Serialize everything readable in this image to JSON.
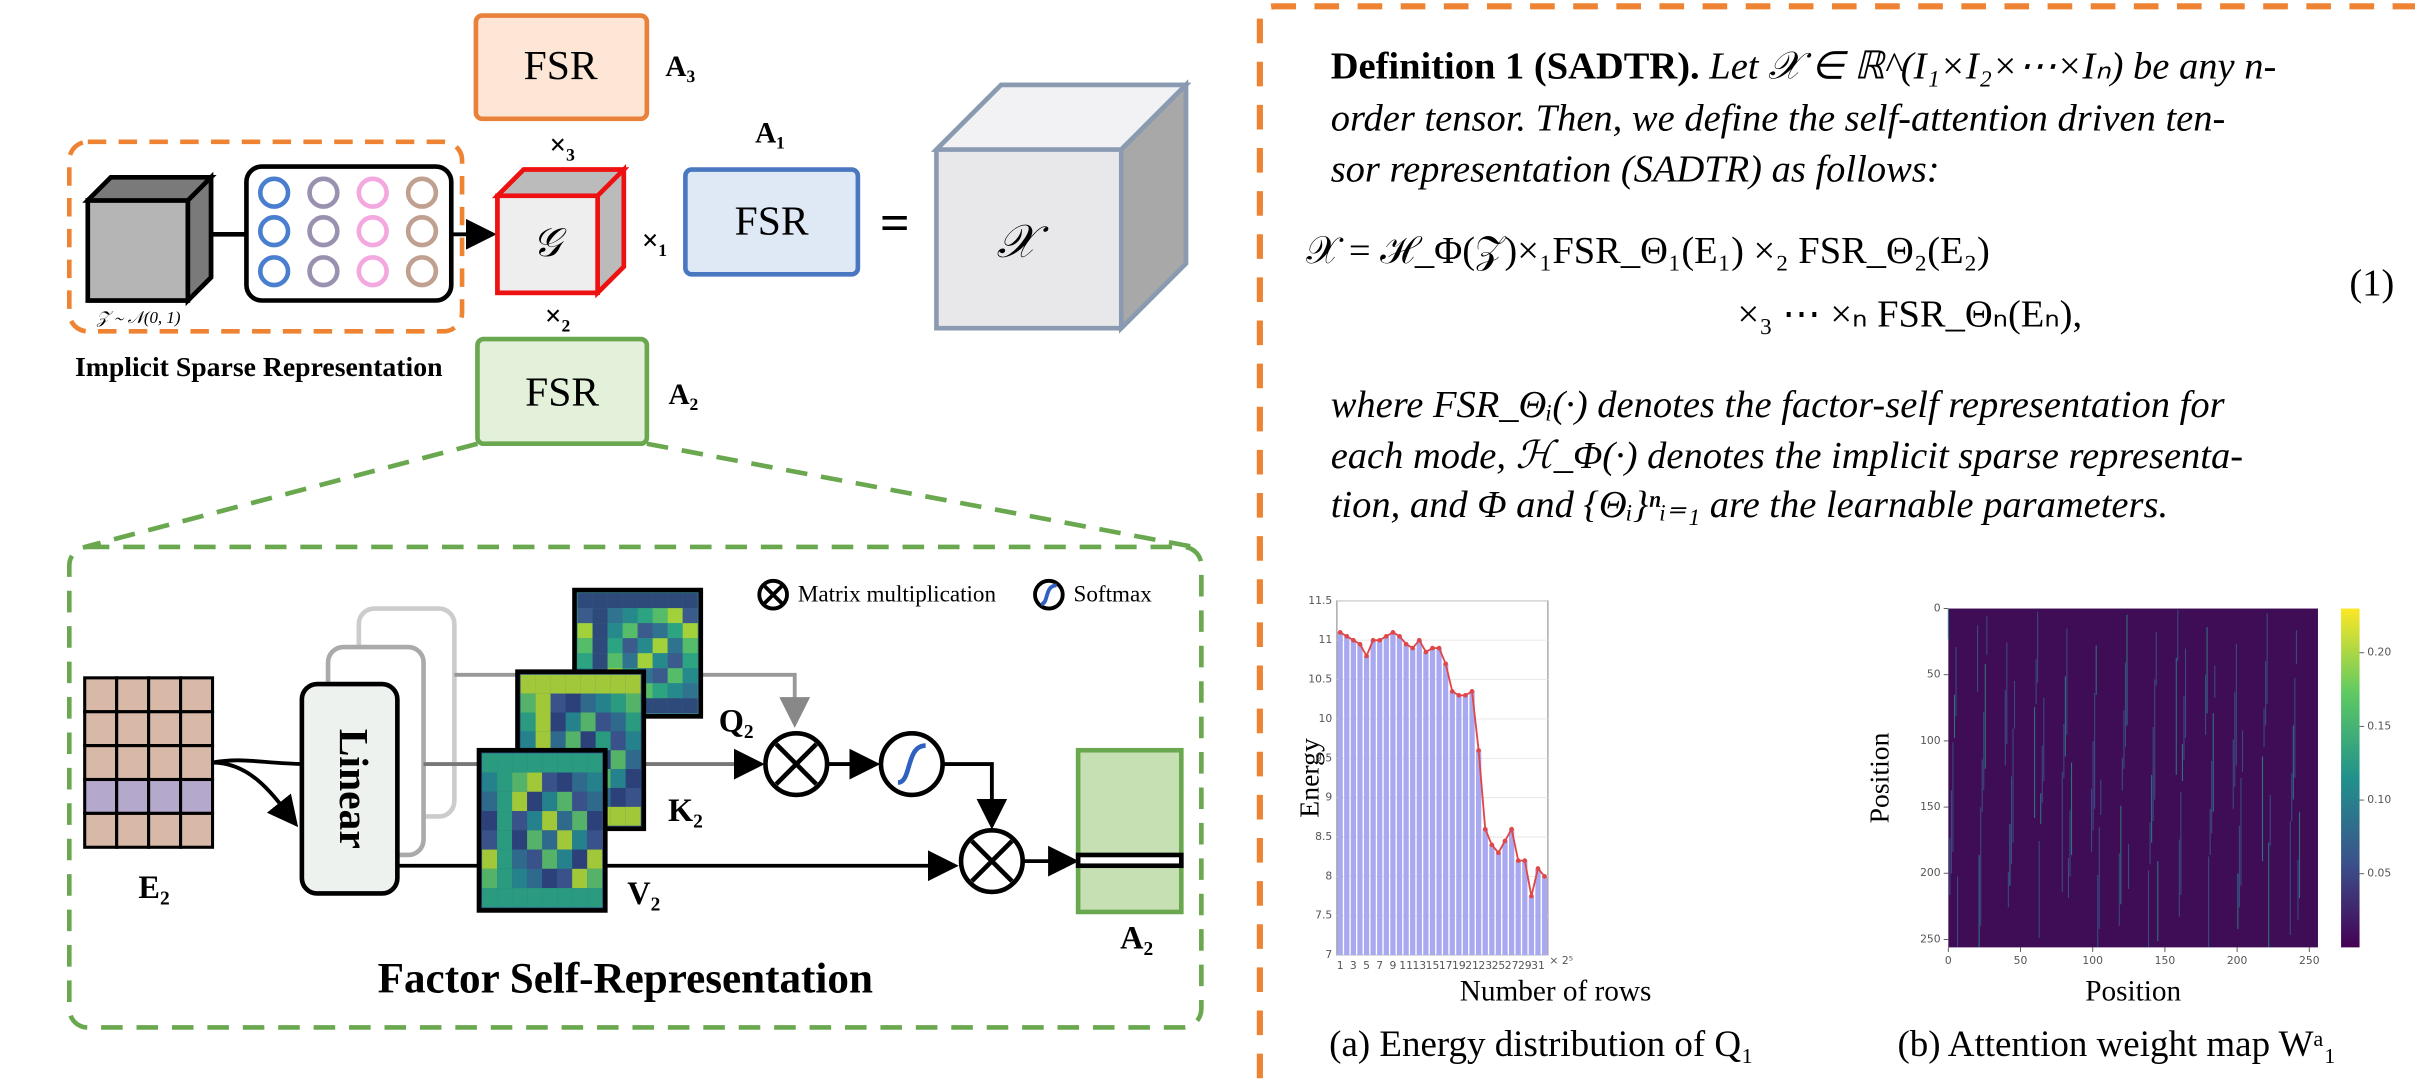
{
  "isr": {
    "label": "Implicit  Sparse Representation",
    "noise": "𝒵 ∼ 𝒩(0, 1)"
  },
  "core": "𝒢",
  "tensor": "𝒳",
  "equals": "=",
  "modes": [
    "×₁",
    "×₂",
    "×₃"
  ],
  "fsr": [
    {
      "label": "FSR",
      "name": "A₁"
    },
    {
      "label": "FSR",
      "name": "A₂"
    },
    {
      "label": "FSR",
      "name": "A₃"
    }
  ],
  "fsr_panel": {
    "title": "Factor Self-Representation",
    "linear": "Linear",
    "legend": [
      "Matrix multiplication",
      "Softmax"
    ],
    "input": "E₂",
    "q": "Q₂",
    "k": "K₂",
    "v": "V₂",
    "output": "A₂"
  },
  "definition": {
    "heading": "Definition 1 (SADTR).",
    "lines": [
      "Let 𝒳 ∈ ℝ^(I₁×I₂×⋯×Iₙ) be any n-",
      "order tensor. Then, we define the self-attention driven ten-",
      "sor representation (SADTR) as follows:"
    ],
    "equation": [
      "𝒳 = ℋ_Φ(𝒵)×₁FSR_Θ₁(E₁) ×₂ FSR_Θ₂(E₂)",
      "×₃ ⋯ ×ₙ FSR_Θₙ(Eₙ),"
    ],
    "equation_number": "(1)",
    "after": [
      "where FSR_Θᵢ(·) denotes the factor-self representation for",
      "each mode, ℋ_Φ(·) denotes the implicit sparse representa-",
      "tion, and Φ and {Θᵢ}ⁿᵢ₌₁ are the learnable parameters."
    ]
  },
  "energy_chart": {
    "type": "bar",
    "xlabel": "Number of rows",
    "ylabel": "Energy",
    "x_unit": "× 2⁵",
    "x": [
      1,
      2,
      3,
      4,
      5,
      6,
      7,
      8,
      9,
      10,
      11,
      12,
      13,
      14,
      15,
      16,
      17,
      18,
      19,
      20,
      21,
      22,
      23,
      24,
      25,
      26,
      27,
      28,
      29,
      30,
      31,
      32
    ],
    "values": [
      11.1,
      11.05,
      11.0,
      10.95,
      10.8,
      11.0,
      11.0,
      11.05,
      11.1,
      11.05,
      10.95,
      10.9,
      11.0,
      10.85,
      10.9,
      10.9,
      10.7,
      10.35,
      10.3,
      10.3,
      10.35,
      9.6,
      8.6,
      8.4,
      8.3,
      8.45,
      8.6,
      8.2,
      8.2,
      7.75,
      8.1,
      8.0
    ],
    "color": "#a9a9f2",
    "line_color": "#e04848",
    "xlim": [
      0.5,
      32.5
    ],
    "ylim": [
      7,
      11.5
    ],
    "yticks": [
      7,
      7.5,
      8,
      8.5,
      9,
      9.5,
      10,
      10.5,
      11,
      11.5
    ],
    "xticks": [
      1,
      3,
      5,
      7,
      9,
      11,
      13,
      15,
      17,
      19,
      21,
      23,
      25,
      27,
      29,
      31
    ],
    "caption": "(a) Energy distribution of Q₁"
  },
  "attention_map": {
    "type": "heatmap",
    "xlabel": "Position",
    "ylabel": "Position",
    "xlim": [
      0,
      256
    ],
    "ylim": [
      0,
      256
    ],
    "xticks": [
      0,
      50,
      100,
      150,
      200,
      250
    ],
    "yticks": [
      0,
      50,
      100,
      150,
      200,
      250
    ],
    "clim": [
      0,
      0.23
    ],
    "cticks": [
      0.05,
      {
        "value": 0.1,
        "label": "0.10"
      },
      0.15,
      {
        "value": 0.2,
        "label": "0.20"
      }
    ],
    "caption": "(b) Attention weight map Wᵃ₁"
  }
}
